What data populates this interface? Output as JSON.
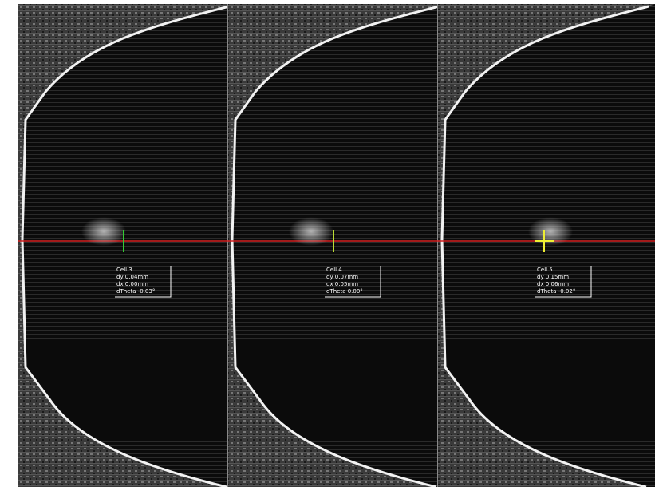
{
  "panels": [
    {
      "lines": [
        "Cell 3",
        "dy 0.04mm",
        "dx 0.00mm",
        "dTheta -0.03°"
      ]
    },
    {
      "lines": [
        "Cell 4",
        "dy 0.07mm",
        "dx 0.05mm",
        "dTheta 0.00°"
      ]
    },
    {
      "lines": [
        "Cell 5",
        "dy 0.15mm",
        "dx 0.06mm",
        "dTheta -0.02°"
      ]
    }
  ]
}
